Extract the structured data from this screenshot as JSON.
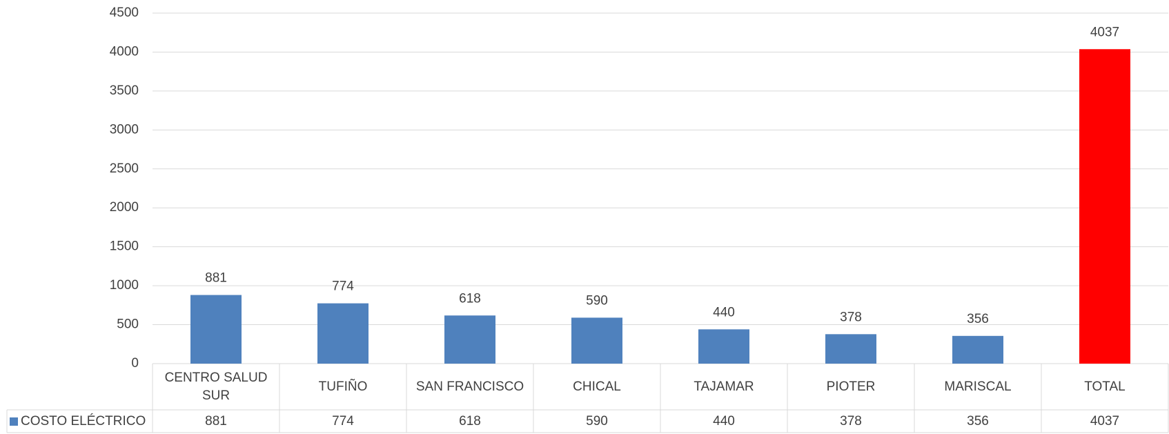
{
  "chart_data": {
    "type": "bar",
    "categories": [
      "CENTRO SALUD SUR",
      "TUFIÑO",
      "SAN FRANCISCO",
      "CHICAL",
      "TAJAMAR",
      "PIOTER",
      "MARISCAL",
      "TOTAL"
    ],
    "series": [
      {
        "name": "COSTO ELÉCTRICO",
        "color": "#4f81bd",
        "colors": [
          "#4f81bd",
          "#4f81bd",
          "#4f81bd",
          "#4f81bd",
          "#4f81bd",
          "#4f81bd",
          "#4f81bd",
          "#ff0000"
        ],
        "values": [
          881,
          774,
          618,
          590,
          440,
          378,
          356,
          4037
        ]
      }
    ],
    "ylim": [
      0,
      4500
    ],
    "yticks": [
      0,
      500,
      1000,
      1500,
      2000,
      2500,
      3000,
      3500,
      4000,
      4500
    ],
    "grid": true,
    "data_labels": true,
    "data_table": true
  }
}
